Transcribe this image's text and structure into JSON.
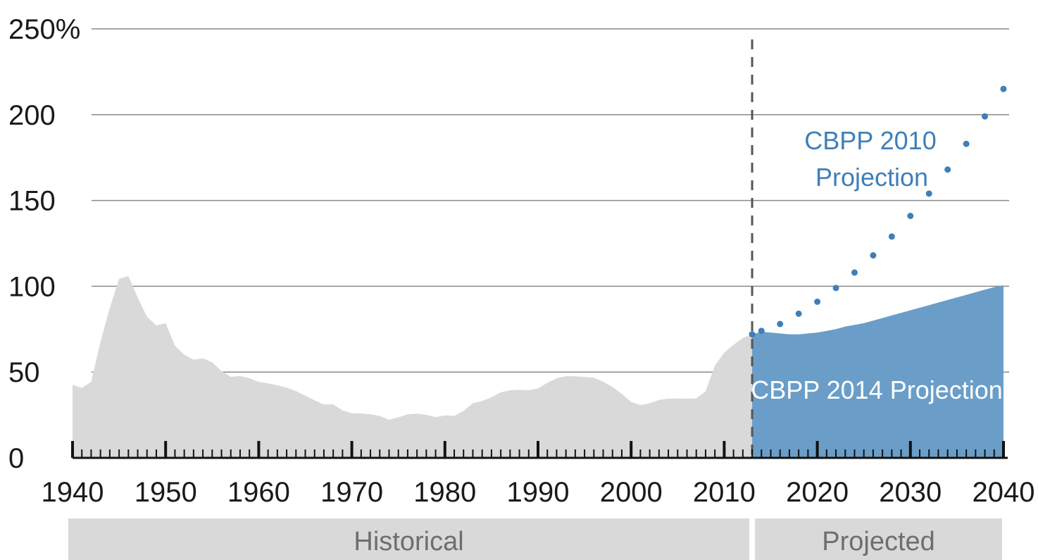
{
  "chart_data": {
    "type": "area",
    "title": "",
    "xlabel": "",
    "ylabel": "",
    "xlim": [
      1940,
      2040
    ],
    "ylim": [
      0,
      250
    ],
    "grid": true,
    "y_ticks": [
      {
        "value": 0,
        "label": "0"
      },
      {
        "value": 50,
        "label": "50"
      },
      {
        "value": 100,
        "label": "100"
      },
      {
        "value": 150,
        "label": "150"
      },
      {
        "value": 200,
        "label": "200"
      },
      {
        "value": 250,
        "label": "250%"
      }
    ],
    "x_ticks": [
      1940,
      1950,
      1960,
      1970,
      1980,
      1990,
      2000,
      2010,
      2020,
      2030,
      2040
    ],
    "divider_year": 2013,
    "series": [
      {
        "name": "",
        "style": "area",
        "color": "#d9d9d9",
        "x": [
          1940,
          1941,
          1942,
          1943,
          1944,
          1945,
          1946,
          1947,
          1948,
          1949,
          1950,
          1951,
          1952,
          1953,
          1954,
          1955,
          1956,
          1957,
          1958,
          1959,
          1960,
          1961,
          1962,
          1963,
          1964,
          1965,
          1966,
          1967,
          1968,
          1969,
          1970,
          1971,
          1972,
          1973,
          1974,
          1975,
          1976,
          1977,
          1978,
          1979,
          1980,
          1981,
          1982,
          1983,
          1984,
          1985,
          1986,
          1987,
          1988,
          1989,
          1990,
          1991,
          1992,
          1993,
          1994,
          1995,
          1996,
          1997,
          1998,
          1999,
          2000,
          2001,
          2002,
          2003,
          2004,
          2005,
          2006,
          2007,
          2008,
          2009,
          2010,
          2011,
          2012,
          2013
        ],
        "y": [
          42.5,
          40.8,
          44.3,
          67.6,
          87.4,
          104.3,
          105.9,
          93.5,
          82.2,
          77.2,
          78.5,
          65.4,
          60.1,
          57.2,
          58.0,
          55.7,
          50.6,
          47.2,
          47.7,
          46.4,
          44.3,
          43.4,
          42.3,
          40.9,
          38.9,
          36.3,
          33.5,
          31.1,
          31.2,
          27.6,
          26.0,
          25.9,
          25.4,
          24.4,
          22.2,
          23.6,
          25.4,
          25.7,
          25.1,
          23.7,
          24.8,
          24.4,
          27.4,
          31.8,
          33.1,
          35.3,
          38.2,
          39.4,
          39.6,
          39.4,
          40.5,
          43.7,
          46.4,
          47.6,
          47.5,
          47.2,
          46.7,
          44.4,
          41.3,
          37.3,
          32.6,
          30.8,
          31.8,
          33.7,
          34.6,
          34.6,
          34.5,
          34.7,
          38.8,
          53.8,
          61.3,
          65.9,
          69.9,
          72.0
        ]
      },
      {
        "name": "CBPP 2014 Projection",
        "style": "area",
        "color": "#6a9ec8",
        "x": [
          2013,
          2014,
          2015,
          2016,
          2017,
          2018,
          2019,
          2020,
          2021,
          2022,
          2023,
          2024,
          2025,
          2026,
          2027,
          2028,
          2029,
          2030,
          2031,
          2032,
          2033,
          2034,
          2035,
          2036,
          2037,
          2038,
          2039,
          2040
        ],
        "y": [
          72,
          73.5,
          73,
          72.5,
          72,
          72,
          72.5,
          73,
          74,
          75,
          76.5,
          77.5,
          78.5,
          80,
          81.5,
          83,
          84.5,
          86,
          87.5,
          89,
          90.5,
          92,
          93.5,
          95,
          96.5,
          98,
          99.5,
          100.5
        ]
      },
      {
        "name": "CBPP 2010 Projection",
        "style": "dotted",
        "color": "#3f7fb8",
        "x": [
          2013,
          2014,
          2016,
          2018,
          2020,
          2022,
          2024,
          2026,
          2028,
          2030,
          2032,
          2034,
          2036,
          2038,
          2040
        ],
        "y": [
          72,
          74,
          78,
          84,
          91,
          99,
          108,
          118,
          129,
          141,
          154,
          168,
          183,
          199,
          215
        ]
      }
    ],
    "annotations": [
      {
        "line1": "CBPP 2010",
        "line2": "Projection",
        "color": "#3f7fb8"
      },
      {
        "text": "CBPP 2014 Projection",
        "color": "#ffffff"
      }
    ],
    "bands": [
      {
        "label": "Historical",
        "from": 1940,
        "to": 2013
      },
      {
        "label": "Projected",
        "from": 2013,
        "to": 2040
      }
    ]
  }
}
